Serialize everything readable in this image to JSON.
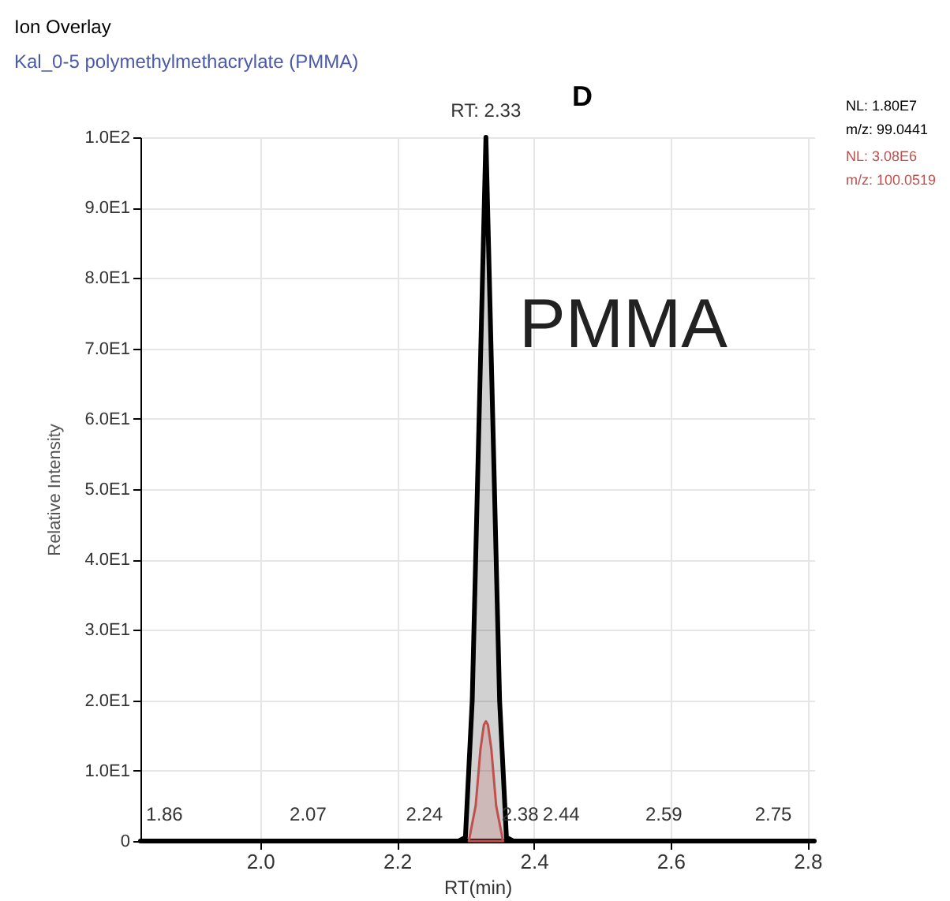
{
  "chart_data": {
    "type": "area",
    "title": "Kal_0-5  polymethylmethacrylate (PMMA)",
    "xlabel": "RT(min)",
    "ylabel": "Relative Intensity",
    "series": [
      {
        "color": "#000000",
        "x": [
          1.825,
          2.0,
          2.2,
          2.29,
          2.3,
          2.31,
          2.32,
          2.33,
          2.34,
          2.35,
          2.36,
          2.37,
          2.5,
          2.81
        ],
        "values": [
          0,
          0,
          0,
          0,
          0.5,
          20,
          60,
          100,
          60,
          20,
          0.5,
          0,
          0,
          0
        ]
      },
      {
        "color": "#c0504d",
        "x": [
          2.305,
          2.315,
          2.322,
          2.327,
          2.33,
          2.333,
          2.338,
          2.345,
          2.355
        ],
        "values": [
          0,
          5,
          13,
          16.5,
          17,
          16.5,
          13,
          5,
          0
        ]
      }
    ],
    "xlim": [
      1.825,
      2.81
    ],
    "xticks": [
      {
        "value": 2,
        "label": "2.0"
      },
      2.2,
      2.4,
      2.6,
      2.8
    ],
    "ylim": [
      0,
      100
    ],
    "yticks": [
      0,
      {
        "value": 10,
        "label": "1.0E1"
      },
      {
        "value": 20,
        "label": "2.0E1"
      },
      {
        "value": 30,
        "label": "3.0E1"
      },
      {
        "value": 40,
        "label": "4.0E1"
      },
      {
        "value": 50,
        "label": "5.0E1"
      },
      {
        "value": 60,
        "label": "6.0E1"
      },
      {
        "value": 70,
        "label": "7.0E1"
      },
      {
        "value": 80,
        "label": "8.0E1"
      },
      {
        "value": 90,
        "label": "9.0E1"
      },
      {
        "value": 100,
        "label": "1.0E2"
      }
    ],
    "grid": true,
    "annotations": [
      {
        "text": "RT: 2.33",
        "x": 2.33,
        "y": 100
      },
      {
        "text": "1.86",
        "x": 1.86,
        "y": 0
      },
      {
        "text": "2.07",
        "x": 2.07,
        "y": 0
      },
      {
        "text": "2.24",
        "x": 2.24,
        "y": 0
      },
      {
        "text": "2.38",
        "x": 2.38,
        "y": 0
      },
      {
        "text": "2.44",
        "x": 2.44,
        "y": 0
      },
      {
        "text": "2.59",
        "x": 2.59,
        "y": 0
      },
      {
        "text": "2.75",
        "x": 2.75,
        "y": 0
      },
      "Ion Overlay",
      "D",
      "PMMA",
      "NL: 1.80E7",
      "m/z: 99.0441",
      "NL: 3.08E6",
      "m/z: 100.0519"
    ]
  }
}
